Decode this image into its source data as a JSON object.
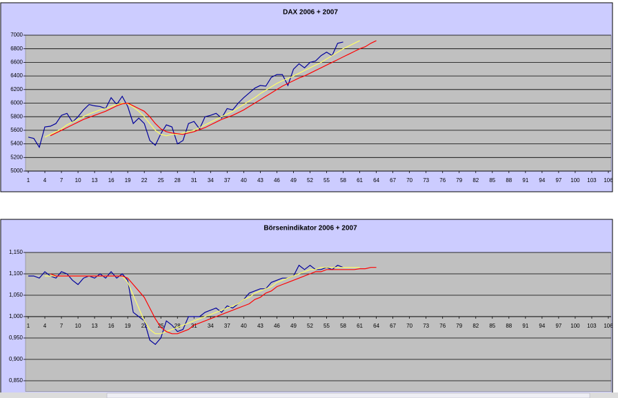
{
  "chart_data": [
    {
      "type": "line",
      "title": "DAX 2006 + 2007",
      "x": [
        1,
        2,
        3,
        4,
        5,
        6,
        7,
        8,
        9,
        10,
        11,
        12,
        13,
        14,
        15,
        16,
        17,
        18,
        19,
        20,
        21,
        22,
        23,
        24,
        25,
        26,
        27,
        28,
        29,
        30,
        31,
        32,
        33,
        34,
        35,
        36,
        37,
        38,
        39,
        40,
        41,
        42,
        43,
        44,
        45,
        46,
        47,
        48,
        49,
        50,
        51,
        52,
        53,
        54,
        55,
        56,
        57,
        58,
        59,
        60,
        61,
        62,
        63,
        64
      ],
      "series": [
        {
          "color": "#00009c",
          "values": [
            5500,
            5480,
            5350,
            5650,
            5660,
            5700,
            5820,
            5850,
            5720,
            5800,
            5900,
            5980,
            5960,
            5950,
            5920,
            6080,
            5980,
            6100,
            5950,
            5700,
            5780,
            5700,
            5450,
            5380,
            5550,
            5680,
            5650,
            5400,
            5450,
            5700,
            5730,
            5620,
            5800,
            5820,
            5850,
            5780,
            5920,
            5900,
            6000,
            6080,
            6150,
            6220,
            6260,
            6250,
            6380,
            6420,
            6420,
            6260,
            6500,
            6580,
            6520,
            6600,
            6620,
            6700,
            6750,
            6700,
            6880,
            6900,
            null,
            null,
            null,
            null,
            null,
            null
          ]
        },
        {
          "color": "#ffff66",
          "values": [
            null,
            null,
            null,
            5500,
            5540,
            5580,
            5620,
            5680,
            5720,
            5760,
            5800,
            5840,
            5870,
            5900,
            5920,
            5950,
            5980,
            6000,
            5990,
            5940,
            5880,
            5800,
            5700,
            5600,
            5540,
            5520,
            5540,
            5540,
            5560,
            5580,
            5600,
            5640,
            5680,
            5720,
            5760,
            5800,
            5840,
            5880,
            5930,
            5980,
            6030,
            6080,
            6140,
            6190,
            6240,
            6290,
            6330,
            6360,
            6400,
            6440,
            6480,
            6520,
            6560,
            6600,
            6650,
            6700,
            6750,
            6800,
            6840,
            6880,
            6920,
            null,
            null,
            null
          ]
        },
        {
          "color": "#ff0000",
          "values": [
            null,
            null,
            null,
            null,
            5520,
            5560,
            5600,
            5640,
            5680,
            5720,
            5760,
            5790,
            5820,
            5850,
            5880,
            5920,
            5960,
            5990,
            6000,
            5960,
            5920,
            5880,
            5800,
            5700,
            5620,
            5580,
            5560,
            5550,
            5540,
            5560,
            5580,
            5610,
            5640,
            5680,
            5720,
            5760,
            5790,
            5820,
            5860,
            5900,
            5950,
            6000,
            6050,
            6100,
            6150,
            6200,
            6250,
            6290,
            6330,
            6370,
            6400,
            6440,
            6480,
            6520,
            6560,
            6600,
            6640,
            6680,
            6720,
            6760,
            6800,
            6830,
            6880,
            6920
          ]
        }
      ],
      "xlim": [
        0.5,
        106.5
      ],
      "xticks": [
        1,
        4,
        7,
        10,
        13,
        16,
        19,
        22,
        25,
        28,
        31,
        34,
        37,
        40,
        43,
        46,
        49,
        52,
        55,
        58,
        61,
        64,
        67,
        70,
        73,
        76,
        79,
        82,
        85,
        88,
        91,
        94,
        97,
        100,
        103,
        106
      ],
      "ylim": [
        5000,
        7000
      ],
      "yticks": [
        5000,
        5200,
        5400,
        5600,
        5800,
        6000,
        6200,
        6400,
        6600,
        6800,
        7000
      ],
      "x_axis_crosses": 5000,
      "grid": true
    },
    {
      "type": "line",
      "title": "Börsenindikator 2006 + 2007",
      "x": [
        1,
        2,
        3,
        4,
        5,
        6,
        7,
        8,
        9,
        10,
        11,
        12,
        13,
        14,
        15,
        16,
        17,
        18,
        19,
        20,
        21,
        22,
        23,
        24,
        25,
        26,
        27,
        28,
        29,
        30,
        31,
        32,
        33,
        34,
        35,
        36,
        37,
        38,
        39,
        40,
        41,
        42,
        43,
        44,
        45,
        46,
        47,
        48,
        49,
        50,
        51,
        52,
        53,
        54,
        55,
        56,
        57,
        58,
        59,
        60,
        61,
        62,
        63,
        64
      ],
      "series": [
        {
          "color": "#00009c",
          "values": [
            1.095,
            1.095,
            1.09,
            1.105,
            1.095,
            1.09,
            1.105,
            1.1,
            1.085,
            1.075,
            1.09,
            1.095,
            1.09,
            1.1,
            1.09,
            1.105,
            1.09,
            1.1,
            1.085,
            1.01,
            1.0,
            0.99,
            0.945,
            0.935,
            0.95,
            0.99,
            0.98,
            0.965,
            0.97,
            1.0,
            1.0,
            1.0,
            1.01,
            1.015,
            1.02,
            1.01,
            1.025,
            1.02,
            1.03,
            1.04,
            1.055,
            1.06,
            1.065,
            1.065,
            1.08,
            1.085,
            1.09,
            1.09,
            1.095,
            1.12,
            1.11,
            1.12,
            1.11,
            1.11,
            1.115,
            1.11,
            1.12,
            1.115,
            null,
            null,
            null,
            null,
            null,
            null
          ]
        },
        {
          "color": "#ffff66",
          "values": [
            null,
            null,
            null,
            1.095,
            1.095,
            1.095,
            1.095,
            1.095,
            1.095,
            1.095,
            1.095,
            1.095,
            1.095,
            1.095,
            1.095,
            1.095,
            1.095,
            1.095,
            1.08,
            1.05,
            1.02,
            0.99,
            0.97,
            0.96,
            0.96,
            0.965,
            0.97,
            0.975,
            0.98,
            0.985,
            0.99,
            0.995,
            1.0,
            1.005,
            1.01,
            1.015,
            1.02,
            1.025,
            1.03,
            1.04,
            1.045,
            1.055,
            1.06,
            1.065,
            1.07,
            1.08,
            1.085,
            1.09,
            1.095,
            1.1,
            1.105,
            1.11,
            1.11,
            1.115,
            1.115,
            1.115,
            1.115,
            1.115,
            1.115,
            1.115,
            1.115,
            null,
            null,
            null
          ]
        },
        {
          "color": "#ff0000",
          "values": [
            null,
            null,
            null,
            null,
            1.1,
            1.095,
            1.095,
            1.095,
            1.095,
            1.095,
            1.095,
            1.095,
            1.095,
            1.095,
            1.095,
            1.095,
            1.095,
            1.095,
            1.09,
            1.075,
            1.06,
            1.045,
            1.02,
            0.995,
            0.975,
            0.965,
            0.96,
            0.96,
            0.965,
            0.97,
            0.98,
            0.985,
            0.99,
            0.995,
            1.0,
            1.005,
            1.01,
            1.015,
            1.02,
            1.025,
            1.03,
            1.04,
            1.045,
            1.055,
            1.06,
            1.07,
            1.075,
            1.08,
            1.085,
            1.09,
            1.095,
            1.1,
            1.105,
            1.105,
            1.11,
            1.11,
            1.11,
            1.11,
            1.11,
            1.11,
            1.112,
            1.112,
            1.115,
            1.115
          ]
        }
      ],
      "xlim": [
        0.5,
        106.5
      ],
      "xticks": [
        1,
        4,
        7,
        10,
        13,
        16,
        19,
        22,
        25,
        28,
        31,
        34,
        37,
        40,
        43,
        46,
        49,
        52,
        55,
        58,
        61,
        64,
        67,
        70,
        73,
        76,
        79,
        82,
        85,
        88,
        91,
        94,
        97,
        100,
        103,
        106
      ],
      "ylim": [
        0.825,
        1.15
      ],
      "yticks": [
        {
          "value": 0.85,
          "label": "0,850"
        },
        {
          "value": 0.9,
          "label": "0,900"
        },
        {
          "value": 0.95,
          "label": "0,950"
        },
        {
          "value": 1.0,
          "label": "1,000"
        },
        {
          "value": 1.05,
          "label": "1,050"
        },
        {
          "value": 1.1,
          "label": "1,100"
        },
        {
          "value": 1.15,
          "label": "1,150"
        }
      ],
      "x_axis_crosses": 1.0,
      "grid": true
    }
  ]
}
